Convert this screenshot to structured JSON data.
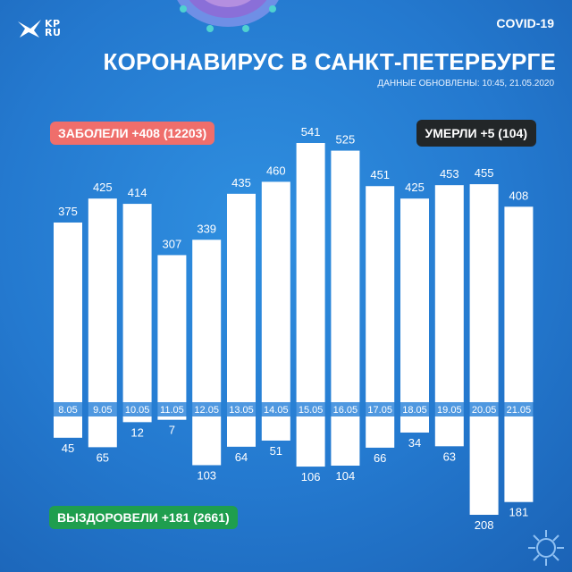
{
  "brand": {
    "logo_text_line1": "KP",
    "logo_text_line2": "RU"
  },
  "header": {
    "tag": "COVID-19",
    "title": "КОРОНАВИРУС В САНКТ-ПЕТЕРБУРГЕ",
    "updated": "ДАННЫЕ ОБНОВЛЕНЫ: 10:45, 21.05.2020"
  },
  "badges": {
    "sick": "ЗАБОЛЕЛИ +408 (12203)",
    "died": "УМЕРЛИ +5 (104)",
    "recovered": "ВЫЗДОРОВЕЛИ +181 (2661)"
  },
  "colors": {
    "background": "#2479cf",
    "bars": "#ffffff",
    "sick_badge": "#ef6e6b",
    "died_badge": "#222628",
    "recovered_badge": "#1f9e4e"
  },
  "chart_data": {
    "type": "bar",
    "categories": [
      "8.05",
      "9.05",
      "10.05",
      "11.05",
      "12.05",
      "13.05",
      "14.05",
      "15.05",
      "16.05",
      "17.05",
      "18.05",
      "19.05",
      "20.05",
      "21.05"
    ],
    "series": [
      {
        "name": "ЗАБОЛЕЛИ",
        "direction": "up",
        "values": [
          375,
          425,
          414,
          307,
          339,
          435,
          460,
          541,
          525,
          451,
          425,
          453,
          455,
          408
        ]
      },
      {
        "name": "ВЫЗДОРОВЕЛИ",
        "direction": "down",
        "values": [
          45,
          65,
          12,
          7,
          103,
          64,
          51,
          106,
          104,
          66,
          34,
          63,
          208,
          181
        ]
      }
    ],
    "title": "КОРОНАВИРУС В САНКТ-ПЕТЕРБУРГЕ",
    "xlabel": "",
    "ylabel": "",
    "grid": false,
    "legend": "none"
  }
}
